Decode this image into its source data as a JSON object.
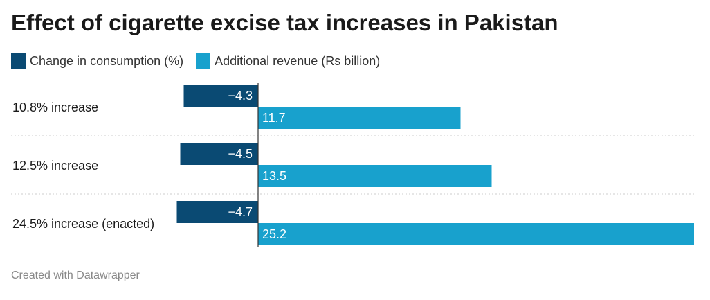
{
  "title": "Effect of cigarette excise tax increases in Pakistan",
  "footer": "Created with Datawrapper",
  "legend": [
    {
      "label": "Change in consumption (%)",
      "color": "#0a4a73"
    },
    {
      "label": "Additional revenue (Rs billion)",
      "color": "#18a1cd"
    }
  ],
  "chart_data": {
    "type": "bar",
    "orientation": "horizontal",
    "title": "Effect of cigarette excise tax increases in Pakistan",
    "categories": [
      "10.8% increase",
      "12.5% increase",
      "24.5% increase (enacted)"
    ],
    "series": [
      {
        "name": "Change in consumption (%)",
        "values": [
          -4.3,
          -4.5,
          -4.7
        ],
        "labels": [
          "−4.3",
          "−4.5",
          "−4.7"
        ],
        "color": "#0a4a73"
      },
      {
        "name": "Additional revenue (Rs billion)",
        "values": [
          11.7,
          13.5,
          25.2
        ],
        "labels": [
          "11.7",
          "13.5",
          "25.2"
        ],
        "color": "#18a1cd"
      }
    ],
    "grid": false,
    "legend_position": "top-left"
  }
}
